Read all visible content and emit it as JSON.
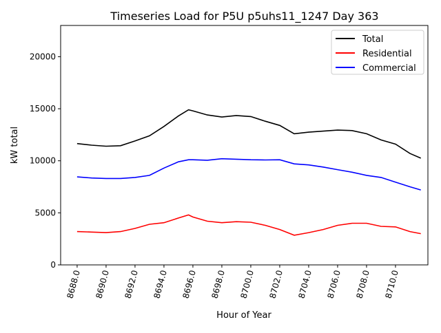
{
  "chart_data": {
    "type": "line",
    "title": "Timeseries Load for P5U p5uhs11_1247  Day 363",
    "xlabel": "Hour of Year",
    "ylabel": "kW total",
    "xlim": [
      8686.86,
      8712.24
    ],
    "ylim": [
      0,
      23000
    ],
    "grid": false,
    "legend_position": "top-right",
    "xticks": [
      8688,
      8690,
      8692,
      8694,
      8696,
      8698,
      8700,
      8702,
      8704,
      8706,
      8708,
      8710
    ],
    "xtick_labels": [
      "8688.0",
      "8690.0",
      "8692.0",
      "8694.0",
      "8696.0",
      "8698.0",
      "8700.0",
      "8702.0",
      "8704.0",
      "8706.0",
      "8708.0",
      "8710.0"
    ],
    "yticks": [
      0,
      5000,
      10000,
      15000,
      20000
    ],
    "ytick_labels": [
      "0",
      "5000",
      "10000",
      "15000",
      "20000"
    ],
    "x": [
      8688,
      8689,
      8690,
      8691,
      8692,
      8693,
      8694,
      8695,
      8695.7,
      8696,
      8697,
      8698,
      8699,
      8700,
      8701,
      8702,
      8703,
      8704,
      8705,
      8706,
      8707,
      8708,
      8709,
      8710,
      8711,
      8711.75
    ],
    "series": [
      {
        "name": "Total",
        "color": "#000000",
        "values": [
          11650,
          11500,
          11400,
          11450,
          11900,
          12400,
          13300,
          14300,
          14900,
          14800,
          14400,
          14200,
          14350,
          14250,
          13800,
          13400,
          12600,
          12750,
          12850,
          12950,
          12900,
          12600,
          12000,
          11600,
          10700,
          10250
        ]
      },
      {
        "name": "Residential",
        "color": "#ff0000",
        "values": [
          3200,
          3150,
          3100,
          3200,
          3500,
          3900,
          4050,
          4500,
          4800,
          4600,
          4200,
          4050,
          4150,
          4100,
          3800,
          3400,
          2850,
          3100,
          3400,
          3800,
          4000,
          4000,
          3700,
          3650,
          3200,
          3000
        ]
      },
      {
        "name": "Commercial",
        "color": "#0000ff",
        "values": [
          8450,
          8350,
          8300,
          8300,
          8400,
          8600,
          9300,
          9900,
          10100,
          10100,
          10050,
          10200,
          10150,
          10100,
          10080,
          10100,
          9700,
          9600,
          9400,
          9150,
          8900,
          8600,
          8400,
          7950,
          7500,
          7200
        ]
      }
    ]
  }
}
